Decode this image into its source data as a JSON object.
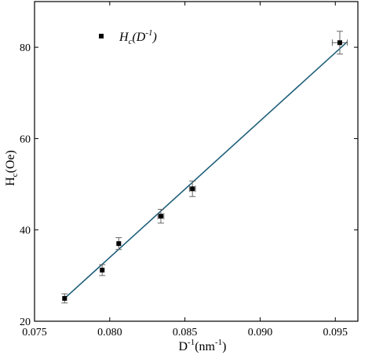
{
  "chart_data": {
    "type": "scatter",
    "xlabel": {
      "base": "D",
      "sup": "-1",
      "unit": "(nm",
      "unit_sup": "-1",
      "unit_end": ")"
    },
    "ylabel": {
      "base": "H",
      "sub": "c",
      "unit": "(Oe)"
    },
    "xlim": [
      0.075,
      0.0965
    ],
    "ylim": [
      20,
      90
    ],
    "xticks": [
      0.075,
      0.08,
      0.085,
      0.09,
      0.095
    ],
    "xtick_labels": [
      "0.075",
      "0.080",
      "0.085",
      "0.090",
      "0.095"
    ],
    "yticks": [
      20,
      40,
      60,
      80
    ],
    "ytick_labels": [
      "20",
      "40",
      "60",
      "80"
    ],
    "legend": {
      "position": "top-left",
      "base": "H",
      "sub": "c",
      "paren_open": "(",
      "arg": "D",
      "arg_sup": "-1",
      "paren_close": ")"
    },
    "series": [
      {
        "points": [
          {
            "x": 0.077,
            "y": 25.0,
            "yerr": 1.0,
            "xerr": 0.0
          },
          {
            "x": 0.0795,
            "y": 31.2,
            "yerr": 1.2,
            "xerr": 0.0
          },
          {
            "x": 0.0806,
            "y": 37.0,
            "yerr": 1.3,
            "xerr": 0.0
          },
          {
            "x": 0.0834,
            "y": 43.0,
            "yerr": 1.5,
            "xerr": 0.0002
          },
          {
            "x": 0.0855,
            "y": 49.0,
            "yerr": 1.7,
            "xerr": 0.0002
          },
          {
            "x": 0.0953,
            "y": 81.0,
            "yerr": 2.5,
            "xerr": 0.0005
          }
        ]
      }
    ],
    "fit_line": {
      "x": [
        0.077,
        0.0958
      ],
      "y": [
        25.0,
        81.2
      ],
      "color": "#1f5f7a"
    },
    "colors": {
      "marker": "#000000",
      "errorbar": "#666666",
      "axis": "#000000"
    }
  }
}
